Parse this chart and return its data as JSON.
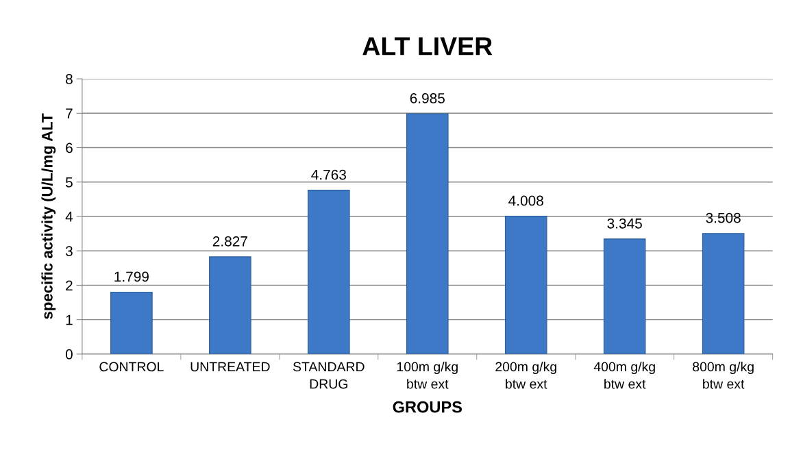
{
  "chart_data": {
    "type": "bar",
    "title": "ALT LIVER",
    "xlabel": "GROUPS",
    "ylabel": "specific activity (U/L/mg ALT",
    "categories": [
      "CONTROL",
      "UNTREATED",
      "STANDARD\nDRUG",
      "100m g/kg\nbtw ext",
      "200m g/kg\nbtw ext",
      "400m g/kg\nbtw ext",
      "800m g/kg\nbtw ext"
    ],
    "values": [
      1.799,
      2.827,
      4.763,
      6.985,
      4.008,
      3.345,
      3.508
    ],
    "color": "#3d79c6",
    "data_labels": true,
    "ylim": [
      0,
      8
    ],
    "yticks": [
      0,
      1,
      2,
      3,
      4,
      5,
      6,
      7,
      8
    ],
    "grid": "y",
    "legend": false
  }
}
